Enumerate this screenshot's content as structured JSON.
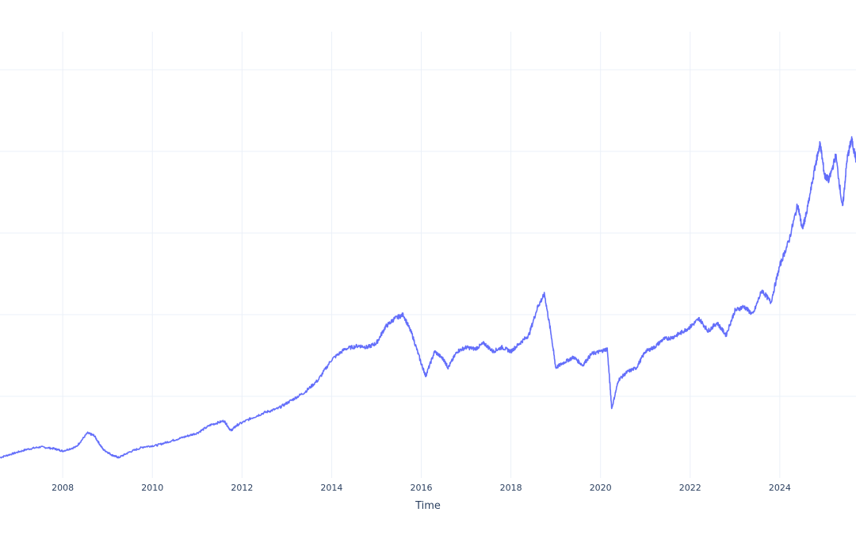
{
  "chart_data": {
    "type": "line",
    "title": "",
    "xlabel": "Time",
    "ylabel": "",
    "grid": true,
    "legend": "none",
    "x_ticks": [
      "2008",
      "2010",
      "2012",
      "2014",
      "2016",
      "2018",
      "2020",
      "2022",
      "2024"
    ],
    "xlim": [
      2006.6,
      2025.7
    ],
    "ylim": [
      0,
      5
    ],
    "y_gridlines": [
      1,
      2,
      3,
      4,
      5
    ],
    "series": [
      {
        "color": "#636efa",
        "x": [
          2006.6,
          2006.9,
          2007.2,
          2007.5,
          2007.8,
          2008.0,
          2008.3,
          2008.55,
          2008.7,
          2008.9,
          2009.1,
          2009.25,
          2009.5,
          2009.8,
          2010.1,
          2010.4,
          2010.7,
          2011.0,
          2011.3,
          2011.6,
          2011.75,
          2011.9,
          2012.2,
          2012.5,
          2012.8,
          2013.1,
          2013.4,
          2013.7,
          2014.0,
          2014.3,
          2014.6,
          2014.8,
          2015.0,
          2015.2,
          2015.4,
          2015.6,
          2015.8,
          2016.0,
          2016.1,
          2016.3,
          2016.5,
          2016.6,
          2016.8,
          2017.0,
          2017.2,
          2017.4,
          2017.6,
          2017.8,
          2018.0,
          2018.2,
          2018.4,
          2018.6,
          2018.75,
          2018.9,
          2019.0,
          2019.2,
          2019.4,
          2019.6,
          2019.8,
          2020.0,
          2020.15,
          2020.25,
          2020.4,
          2020.6,
          2020.8,
          2021.0,
          2021.2,
          2021.4,
          2021.6,
          2021.8,
          2022.0,
          2022.2,
          2022.4,
          2022.6,
          2022.8,
          2023.0,
          2023.2,
          2023.4,
          2023.6,
          2023.8,
          2024.0,
          2024.2,
          2024.4,
          2024.5,
          2024.6,
          2024.8,
          2024.9,
          2025.0,
          2025.1,
          2025.25,
          2025.4,
          2025.5,
          2025.6,
          2025.7
        ],
        "y": [
          0.25,
          0.3,
          0.35,
          0.38,
          0.36,
          0.33,
          0.38,
          0.55,
          0.52,
          0.35,
          0.28,
          0.25,
          0.32,
          0.38,
          0.4,
          0.45,
          0.5,
          0.55,
          0.65,
          0.7,
          0.58,
          0.65,
          0.73,
          0.8,
          0.85,
          0.95,
          1.05,
          1.2,
          1.45,
          1.58,
          1.62,
          1.6,
          1.65,
          1.85,
          1.95,
          2.0,
          1.75,
          1.4,
          1.25,
          1.55,
          1.45,
          1.35,
          1.55,
          1.6,
          1.58,
          1.65,
          1.55,
          1.6,
          1.55,
          1.65,
          1.75,
          2.1,
          2.25,
          1.75,
          1.35,
          1.42,
          1.48,
          1.38,
          1.52,
          1.55,
          1.58,
          0.85,
          1.2,
          1.3,
          1.35,
          1.55,
          1.6,
          1.7,
          1.72,
          1.78,
          1.85,
          1.95,
          1.8,
          1.9,
          1.75,
          2.05,
          2.1,
          2.0,
          2.3,
          2.15,
          2.6,
          2.9,
          3.35,
          3.05,
          3.25,
          3.85,
          4.1,
          3.7,
          3.65,
          3.95,
          3.3,
          3.9,
          4.15,
          3.9
        ]
      }
    ]
  }
}
